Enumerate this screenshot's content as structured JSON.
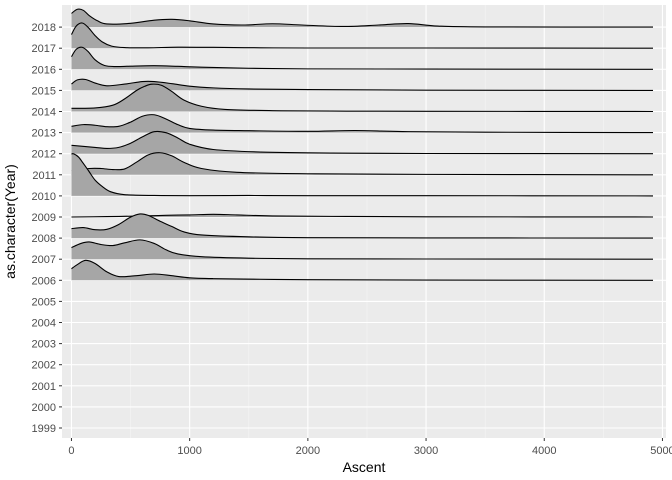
{
  "chart_data": {
    "type": "ridgeline",
    "title": "",
    "xlabel": "Ascent",
    "ylabel": "as.character(Year)",
    "xlim": [
      -80,
      5030
    ],
    "x_ticks": [
      0,
      1000,
      2000,
      3000,
      4000,
      5000
    ],
    "x_tick_labels": [
      "0",
      "1000",
      "2000",
      "3000",
      "4000",
      "5000"
    ],
    "categories": [
      "1999",
      "2000",
      "2001",
      "2002",
      "2003",
      "2004",
      "2005",
      "2006",
      "2007",
      "2008",
      "2009",
      "2010",
      "2011",
      "2012",
      "2013",
      "2014",
      "2015",
      "2016",
      "2017",
      "2018"
    ],
    "grid": true,
    "fill_color": "#a6a6a6",
    "line_color": "#000000",
    "panel_color": "#ebebeb",
    "ridges": [
      {
        "year": "2006",
        "x": [
          0,
          50,
          120,
          200,
          300,
          400,
          550,
          700,
          850,
          1000,
          1200,
          1600,
          2000,
          3000,
          4920
        ],
        "density": [
          0.55,
          0.75,
          0.95,
          0.8,
          0.4,
          0.18,
          0.22,
          0.3,
          0.22,
          0.12,
          0.08,
          0.05,
          0.03,
          0.01,
          0.0
        ]
      },
      {
        "year": "2007",
        "x": [
          0,
          80,
          150,
          250,
          350,
          450,
          580,
          700,
          800,
          900,
          1100,
          1500,
          2000,
          3000,
          4920
        ],
        "density": [
          0.55,
          0.75,
          0.82,
          0.7,
          0.65,
          0.78,
          0.92,
          0.75,
          0.45,
          0.25,
          0.12,
          0.05,
          0.02,
          0.01,
          0.0
        ]
      },
      {
        "year": "2008",
        "x": [
          0,
          100,
          200,
          300,
          400,
          500,
          580,
          650,
          750,
          850,
          950,
          1100,
          1500,
          2000,
          3000,
          4920
        ],
        "density": [
          0.45,
          0.5,
          0.4,
          0.42,
          0.65,
          1.0,
          1.15,
          1.08,
          0.8,
          0.55,
          0.3,
          0.15,
          0.06,
          0.02,
          0.01,
          0.0
        ]
      },
      {
        "year": "2009",
        "x": [
          0,
          300,
          600,
          800,
          1000,
          1200,
          1400,
          1700,
          2200,
          3000,
          4920
        ],
        "density": [
          0.0,
          0.02,
          0.05,
          0.08,
          0.1,
          0.13,
          0.1,
          0.05,
          0.03,
          0.01,
          0.0
        ]
      },
      {
        "year": "2010",
        "x": [
          0,
          20,
          60,
          100,
          150,
          200,
          260,
          330,
          450,
          700,
          1000,
          1500,
          2000,
          3000,
          4920
        ],
        "density": [
          2.0,
          2.0,
          1.85,
          1.55,
          1.15,
          0.75,
          0.45,
          0.2,
          0.06,
          0.02,
          0.01,
          0.02,
          0.01,
          0.01,
          0.0
        ]
      },
      {
        "year": "2011",
        "x": [
          0,
          150,
          250,
          350,
          450,
          550,
          650,
          750,
          850,
          950,
          1100,
          1400,
          2000,
          3000,
          4920
        ],
        "density": [
          0.2,
          0.3,
          0.3,
          0.25,
          0.28,
          0.6,
          0.95,
          1.05,
          0.9,
          0.6,
          0.3,
          0.12,
          0.05,
          0.02,
          0.0
        ]
      },
      {
        "year": "2012",
        "x": [
          0,
          200,
          300,
          400,
          500,
          600,
          700,
          800,
          900,
          1000,
          1200,
          1600,
          2200,
          3000,
          4920
        ],
        "density": [
          0.4,
          0.3,
          0.25,
          0.3,
          0.5,
          0.8,
          1.05,
          1.0,
          0.75,
          0.45,
          0.2,
          0.08,
          0.03,
          0.01,
          0.0
        ]
      },
      {
        "year": "2013",
        "x": [
          0,
          100,
          200,
          300,
          400,
          500,
          600,
          700,
          800,
          900,
          1000,
          1200,
          1500,
          2000,
          2400,
          2800,
          3500,
          4920
        ],
        "density": [
          0.3,
          0.38,
          0.35,
          0.28,
          0.3,
          0.5,
          0.78,
          0.85,
          0.65,
          0.38,
          0.2,
          0.12,
          0.09,
          0.06,
          0.1,
          0.05,
          0.02,
          0.0
        ]
      },
      {
        "year": "2014",
        "x": [
          0,
          200,
          350,
          450,
          550,
          620,
          680,
          760,
          850,
          950,
          1100,
          1300,
          1700,
          2200,
          3000,
          4920
        ],
        "density": [
          0.15,
          0.17,
          0.3,
          0.6,
          1.0,
          1.2,
          1.3,
          1.25,
          0.95,
          0.55,
          0.25,
          0.1,
          0.04,
          0.02,
          0.01,
          0.0
        ]
      },
      {
        "year": "2015",
        "x": [
          0,
          50,
          120,
          200,
          300,
          450,
          600,
          700,
          850,
          1000,
          1200,
          1500,
          2000,
          3000,
          4920
        ],
        "density": [
          0.3,
          0.5,
          0.52,
          0.35,
          0.22,
          0.3,
          0.42,
          0.42,
          0.32,
          0.2,
          0.12,
          0.07,
          0.04,
          0.01,
          0.0
        ]
      },
      {
        "year": "2016",
        "x": [
          0,
          40,
          90,
          140,
          200,
          280,
          380,
          500,
          700,
          900,
          1100,
          1500,
          2000,
          3000,
          4920
        ],
        "density": [
          0.6,
          0.95,
          1.05,
          0.85,
          0.45,
          0.18,
          0.13,
          0.15,
          0.17,
          0.14,
          0.1,
          0.05,
          0.02,
          0.01,
          0.0
        ]
      },
      {
        "year": "2017",
        "x": [
          0,
          40,
          90,
          140,
          200,
          260,
          340,
          450,
          650,
          900,
          1200,
          1600,
          2000,
          3000,
          4920
        ],
        "density": [
          0.65,
          1.05,
          1.2,
          1.0,
          0.6,
          0.3,
          0.1,
          0.03,
          0.02,
          0.05,
          0.04,
          0.02,
          0.01,
          0.01,
          0.0
        ]
      },
      {
        "year": "2018",
        "x": [
          0,
          50,
          100,
          150,
          220,
          300,
          500,
          700,
          850,
          1000,
          1200,
          1450,
          1700,
          1950,
          2300,
          2600,
          2850,
          3100,
          3500,
          4920
        ],
        "density": [
          0.65,
          0.85,
          0.8,
          0.55,
          0.3,
          0.15,
          0.18,
          0.33,
          0.37,
          0.3,
          0.15,
          0.1,
          0.16,
          0.1,
          0.03,
          0.1,
          0.17,
          0.05,
          0.01,
          0.0
        ]
      }
    ]
  }
}
